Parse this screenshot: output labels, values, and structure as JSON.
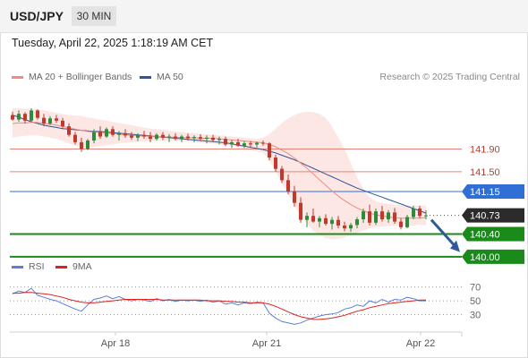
{
  "header": {
    "symbol": "USD/JPY",
    "timeframe": "30 MIN"
  },
  "timestamp": "Tuesday, April 22, 2025 1:18:19 AM CET",
  "legend": {
    "ma20": {
      "label": "MA 20 + Bollinger Bands",
      "color": "#f08a80"
    },
    "ma50": {
      "label": "MA 50",
      "color": "#2f5596"
    }
  },
  "credit": "Research © 2025 Trading Central",
  "colors": {
    "up": "#2e8b3c",
    "down": "#c0392b",
    "support": "#1a8a1a",
    "pivot": "#2f6fd6",
    "resistance": "#e8807a",
    "last": "#2b2b2b",
    "arrow": "#2f5a9a"
  },
  "chart_data": [
    {
      "type": "candlestick",
      "symbol": "USD/JPY",
      "interval": "30 MIN",
      "ylim": [
        139.95,
        142.95
      ],
      "x_tick_labels": [
        "Apr 18",
        "Apr 21",
        "Apr 22"
      ],
      "candles": [
        {
          "o": 142.5,
          "h": 142.56,
          "l": 142.4,
          "c": 142.42
        },
        {
          "o": 142.42,
          "h": 142.58,
          "l": 142.38,
          "c": 142.52
        },
        {
          "o": 142.52,
          "h": 142.55,
          "l": 142.35,
          "c": 142.4
        },
        {
          "o": 142.4,
          "h": 142.62,
          "l": 142.38,
          "c": 142.58
        },
        {
          "o": 142.58,
          "h": 142.6,
          "l": 142.42,
          "c": 142.45
        },
        {
          "o": 142.45,
          "h": 142.52,
          "l": 142.3,
          "c": 142.35
        },
        {
          "o": 142.35,
          "h": 142.48,
          "l": 142.32,
          "c": 142.44
        },
        {
          "o": 142.44,
          "h": 142.5,
          "l": 142.36,
          "c": 142.4
        },
        {
          "o": 142.4,
          "h": 142.45,
          "l": 142.25,
          "c": 142.3
        },
        {
          "o": 142.3,
          "h": 142.35,
          "l": 142.12,
          "c": 142.15
        },
        {
          "o": 142.15,
          "h": 142.2,
          "l": 141.98,
          "c": 142.02
        },
        {
          "o": 142.02,
          "h": 142.1,
          "l": 141.85,
          "c": 141.9
        },
        {
          "o": 141.9,
          "h": 142.08,
          "l": 141.88,
          "c": 142.05
        },
        {
          "o": 142.05,
          "h": 142.25,
          "l": 142.0,
          "c": 142.2
        },
        {
          "o": 142.2,
          "h": 142.3,
          "l": 142.08,
          "c": 142.12
        },
        {
          "o": 142.12,
          "h": 142.28,
          "l": 142.1,
          "c": 142.25
        },
        {
          "o": 142.25,
          "h": 142.3,
          "l": 142.12,
          "c": 142.15
        },
        {
          "o": 142.15,
          "h": 142.22,
          "l": 142.05,
          "c": 142.18
        },
        {
          "o": 142.18,
          "h": 142.25,
          "l": 142.1,
          "c": 142.14
        },
        {
          "o": 142.14,
          "h": 142.2,
          "l": 142.06,
          "c": 142.1
        },
        {
          "o": 142.1,
          "h": 142.18,
          "l": 142.04,
          "c": 142.15
        },
        {
          "o": 142.15,
          "h": 142.22,
          "l": 142.08,
          "c": 142.12
        },
        {
          "o": 142.12,
          "h": 142.2,
          "l": 142.02,
          "c": 142.08
        },
        {
          "o": 142.08,
          "h": 142.18,
          "l": 142.05,
          "c": 142.15
        },
        {
          "o": 142.15,
          "h": 142.2,
          "l": 142.06,
          "c": 142.1
        },
        {
          "o": 142.1,
          "h": 142.16,
          "l": 142.02,
          "c": 142.12
        },
        {
          "o": 142.12,
          "h": 142.18,
          "l": 142.05,
          "c": 142.08
        },
        {
          "o": 142.08,
          "h": 142.15,
          "l": 142.02,
          "c": 142.12
        },
        {
          "o": 142.12,
          "h": 142.17,
          "l": 142.05,
          "c": 142.09
        },
        {
          "o": 142.09,
          "h": 142.14,
          "l": 142.02,
          "c": 142.11
        },
        {
          "o": 142.11,
          "h": 142.16,
          "l": 142.04,
          "c": 142.08
        },
        {
          "o": 142.08,
          "h": 142.14,
          "l": 142.0,
          "c": 142.1
        },
        {
          "o": 142.1,
          "h": 142.15,
          "l": 142.02,
          "c": 142.06
        },
        {
          "o": 142.06,
          "h": 142.12,
          "l": 141.98,
          "c": 142.08
        },
        {
          "o": 142.08,
          "h": 142.12,
          "l": 141.95,
          "c": 141.98
        },
        {
          "o": 141.98,
          "h": 142.06,
          "l": 141.92,
          "c": 142.02
        },
        {
          "o": 142.02,
          "h": 142.08,
          "l": 141.94,
          "c": 141.96
        },
        {
          "o": 141.96,
          "h": 142.04,
          "l": 141.92,
          "c": 142.0
        },
        {
          "o": 142.0,
          "h": 142.04,
          "l": 141.93,
          "c": 141.98
        },
        {
          "o": 141.98,
          "h": 142.03,
          "l": 141.93,
          "c": 142.01
        },
        {
          "o": 142.01,
          "h": 142.05,
          "l": 141.96,
          "c": 142.0
        },
        {
          "o": 142.0,
          "h": 142.02,
          "l": 141.7,
          "c": 141.75
        },
        {
          "o": 141.75,
          "h": 141.8,
          "l": 141.5,
          "c": 141.55
        },
        {
          "o": 141.55,
          "h": 141.6,
          "l": 141.3,
          "c": 141.35
        },
        {
          "o": 141.35,
          "h": 141.45,
          "l": 141.1,
          "c": 141.15
        },
        {
          "o": 141.15,
          "h": 141.25,
          "l": 140.88,
          "c": 140.95
        },
        {
          "o": 140.95,
          "h": 141.05,
          "l": 140.6,
          "c": 140.65
        },
        {
          "o": 140.65,
          "h": 140.78,
          "l": 140.52,
          "c": 140.72
        },
        {
          "o": 140.72,
          "h": 140.85,
          "l": 140.6,
          "c": 140.62
        },
        {
          "o": 140.62,
          "h": 140.72,
          "l": 140.52,
          "c": 140.68
        },
        {
          "o": 140.68,
          "h": 140.75,
          "l": 140.55,
          "c": 140.58
        },
        {
          "o": 140.58,
          "h": 140.7,
          "l": 140.48,
          "c": 140.65
        },
        {
          "o": 140.65,
          "h": 140.72,
          "l": 140.5,
          "c": 140.55
        },
        {
          "o": 140.55,
          "h": 140.62,
          "l": 140.45,
          "c": 140.5
        },
        {
          "o": 140.5,
          "h": 140.6,
          "l": 140.44,
          "c": 140.56
        },
        {
          "o": 140.56,
          "h": 140.7,
          "l": 140.5,
          "c": 140.66
        },
        {
          "o": 140.66,
          "h": 140.85,
          "l": 140.6,
          "c": 140.8
        },
        {
          "o": 140.8,
          "h": 140.92,
          "l": 140.55,
          "c": 140.6
        },
        {
          "o": 140.6,
          "h": 140.85,
          "l": 140.56,
          "c": 140.8
        },
        {
          "o": 140.8,
          "h": 140.9,
          "l": 140.62,
          "c": 140.66
        },
        {
          "o": 140.66,
          "h": 140.82,
          "l": 140.6,
          "c": 140.78
        },
        {
          "o": 140.78,
          "h": 140.86,
          "l": 140.58,
          "c": 140.62
        },
        {
          "o": 140.62,
          "h": 140.68,
          "l": 140.48,
          "c": 140.52
        },
        {
          "o": 140.52,
          "h": 140.74,
          "l": 140.5,
          "c": 140.7
        },
        {
          "o": 140.7,
          "h": 140.9,
          "l": 140.66,
          "c": 140.85
        },
        {
          "o": 140.85,
          "h": 140.9,
          "l": 140.68,
          "c": 140.72
        },
        {
          "o": 140.72,
          "h": 140.82,
          "l": 140.66,
          "c": 140.73
        }
      ],
      "ma20": [
        142.35,
        142.36,
        142.36,
        142.37,
        142.37,
        142.35,
        142.34,
        142.32,
        142.3,
        142.27,
        142.25,
        142.23,
        142.21,
        142.2,
        142.19,
        142.18,
        142.17,
        142.16,
        142.15,
        142.14,
        142.13,
        142.13,
        142.12,
        142.12,
        142.12,
        142.11,
        142.11,
        142.1,
        142.1,
        142.1,
        142.09,
        142.09,
        142.09,
        142.08,
        142.07,
        142.06,
        142.05,
        142.04,
        142.03,
        142.02,
        142.01,
        141.98,
        141.94,
        141.88,
        141.82,
        141.74,
        141.65,
        141.56,
        141.46,
        141.36,
        141.26,
        141.16,
        141.07,
        140.99,
        140.92,
        140.86,
        140.81,
        140.77,
        140.74,
        140.72,
        140.7,
        140.69,
        140.68,
        140.68,
        140.68,
        140.68,
        140.69
      ],
      "ma50": [
        142.5,
        142.46,
        142.42,
        142.38,
        142.35,
        142.32,
        142.3,
        142.28,
        142.26,
        142.25,
        142.24,
        142.23,
        142.22,
        142.21,
        142.21,
        142.2,
        142.19,
        142.18,
        142.17,
        142.16,
        142.15,
        142.14,
        142.13,
        142.12,
        142.11,
        142.1,
        142.09,
        142.08,
        142.07,
        142.06,
        142.05,
        142.04,
        142.03,
        142.02,
        142.01,
        141.99,
        141.97,
        141.95,
        141.93,
        141.91,
        141.89,
        141.86,
        141.83,
        141.79,
        141.75,
        141.71,
        141.66,
        141.61,
        141.56,
        141.51,
        141.46,
        141.41,
        141.36,
        141.31,
        141.26,
        141.21,
        141.17,
        141.13,
        141.09,
        141.05,
        141.01,
        140.97,
        140.93,
        140.89,
        140.85,
        140.81,
        140.77
      ],
      "bb_upper": [
        142.62,
        142.62,
        142.61,
        142.61,
        142.6,
        142.58,
        142.56,
        142.54,
        142.52,
        142.5,
        142.49,
        142.48,
        142.46,
        142.44,
        142.42,
        142.4,
        142.38,
        142.36,
        142.34,
        142.32,
        142.3,
        142.28,
        142.26,
        142.25,
        142.24,
        142.22,
        142.21,
        142.2,
        142.19,
        142.18,
        142.17,
        142.16,
        142.15,
        142.14,
        142.13,
        142.12,
        142.11,
        142.1,
        142.09,
        142.08,
        142.1,
        142.16,
        142.26,
        142.36,
        142.44,
        142.5,
        142.54,
        142.56,
        142.55,
        142.52,
        142.45,
        142.3,
        142.1,
        141.9,
        141.65,
        141.4,
        141.2,
        141.05,
        140.98,
        140.95,
        140.93,
        140.92,
        140.91,
        140.9,
        140.9,
        140.9,
        140.9
      ],
      "bb_lower": [
        142.1,
        142.12,
        142.13,
        142.14,
        142.14,
        142.12,
        142.1,
        142.08,
        142.04,
        142.0,
        141.96,
        141.93,
        141.92,
        141.93,
        141.95,
        141.97,
        141.98,
        142.0,
        142.01,
        142.02,
        142.03,
        142.03,
        142.04,
        142.04,
        142.04,
        142.04,
        142.04,
        142.04,
        142.03,
        142.02,
        142.01,
        142.0,
        141.99,
        141.98,
        141.97,
        141.95,
        141.93,
        141.9,
        141.88,
        141.86,
        141.83,
        141.7,
        141.5,
        141.3,
        141.1,
        140.9,
        140.72,
        140.58,
        140.46,
        140.38,
        140.33,
        140.31,
        140.32,
        140.34,
        140.38,
        140.42,
        140.46,
        140.5,
        140.52,
        140.53,
        140.54,
        140.54,
        140.55,
        140.55,
        140.55,
        140.56,
        140.56
      ],
      "levels": [
        {
          "value": 141.9,
          "label": "141.90",
          "kind": "resistance"
        },
        {
          "value": 141.5,
          "label": "141.50",
          "kind": "resistance"
        },
        {
          "value": 141.15,
          "label": "141.15",
          "kind": "pivot"
        },
        {
          "value": 140.4,
          "label": "140.40",
          "kind": "support"
        },
        {
          "value": 140.0,
          "label": "140.00",
          "kind": "support"
        }
      ],
      "last_price": {
        "value": 140.73,
        "label": "140.73"
      },
      "forecast_arrow": {
        "from": 140.65,
        "to": 140.02,
        "direction": "down"
      }
    },
    {
      "type": "line",
      "title": "RSI",
      "legend": [
        {
          "name": "RSI",
          "color": "#5b7fd6"
        },
        {
          "name": "9MA",
          "color": "#e02020"
        }
      ],
      "ylim": [
        0,
        100
      ],
      "y_tick_labels": [
        "70",
        "50",
        "30"
      ],
      "y_ticks": [
        70,
        50,
        30
      ],
      "series": [
        {
          "name": "RSI",
          "values": [
            60,
            64,
            62,
            68,
            58,
            55,
            52,
            50,
            46,
            42,
            38,
            35,
            44,
            52,
            54,
            57,
            53,
            56,
            52,
            50,
            52,
            51,
            49,
            53,
            50,
            52,
            49,
            51,
            50,
            51,
            49,
            51,
            48,
            50,
            45,
            47,
            44,
            47,
            46,
            48,
            47,
            32,
            25,
            20,
            18,
            16,
            18,
            22,
            25,
            28,
            30,
            31,
            33,
            38,
            40,
            44,
            42,
            50,
            47,
            52,
            48,
            52,
            51,
            55,
            53,
            50,
            50
          ]
        },
        {
          "name": "9MA",
          "values": [
            61,
            61,
            62,
            62,
            61,
            60,
            59,
            57,
            55,
            52,
            50,
            48,
            47,
            47,
            48,
            49,
            50,
            51,
            52,
            52,
            52,
            52,
            52,
            52,
            51,
            51,
            51,
            51,
            51,
            51,
            51,
            50,
            50,
            50,
            49,
            49,
            48,
            48,
            47,
            47,
            47,
            45,
            42,
            38,
            34,
            30,
            27,
            25,
            23,
            23,
            24,
            25,
            27,
            29,
            32,
            35,
            37,
            40,
            42,
            44,
            46,
            47,
            48,
            49,
            50,
            51,
            51
          ]
        }
      ]
    }
  ]
}
